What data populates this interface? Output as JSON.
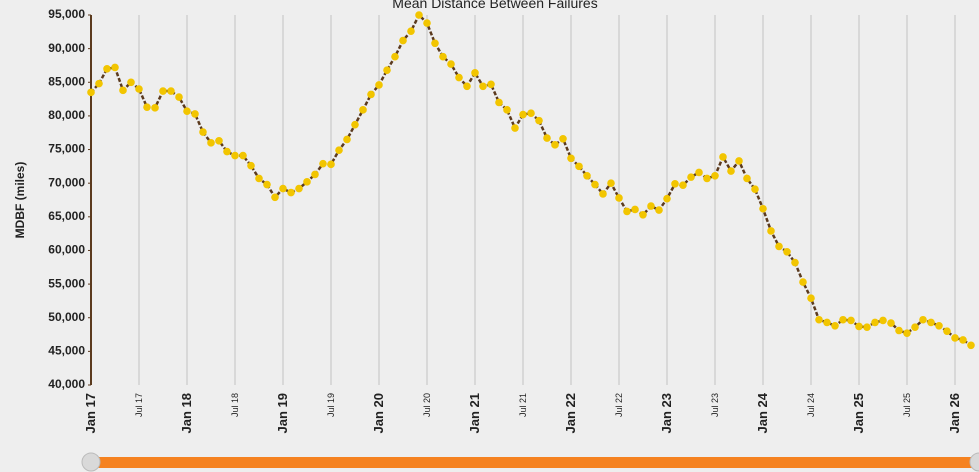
{
  "chart_data": {
    "type": "line",
    "title": "Mean Distance Between Failures",
    "y_label": "MDBF (miles)",
    "categories": [
      "Jan 17",
      null,
      null,
      null,
      null,
      null,
      "Jul 17",
      null,
      null,
      null,
      null,
      null,
      "Jan 18",
      null,
      null,
      null,
      null,
      null,
      "Jul 18",
      null,
      null,
      null,
      null,
      null,
      "Jan 19",
      null,
      null,
      null,
      null,
      null,
      "Jul 19",
      null,
      null,
      null,
      null,
      null,
      "Jan 20",
      null,
      null,
      null,
      null,
      null,
      "Jul 20",
      null,
      null,
      null,
      null,
      null,
      "Jan 21",
      null,
      null,
      null,
      null,
      null,
      "Jul 21",
      null,
      null,
      null,
      null,
      null,
      "Jan 22",
      null,
      null,
      null,
      null,
      null,
      "Jul 22",
      null,
      null,
      null,
      null,
      null,
      "Jan 23",
      null,
      null,
      null,
      null,
      null,
      "Jul 23",
      null,
      null,
      null,
      null,
      null,
      "Jan 24",
      null,
      null,
      null,
      null,
      null,
      "Jul 24",
      null,
      null,
      null,
      null,
      null,
      "Jan 25",
      null,
      null,
      null,
      null,
      null,
      "Jul 25",
      null,
      null,
      null,
      null,
      null,
      "Jan 26",
      null,
      null
    ],
    "series": [
      {
        "name": "MDBF",
        "color": "#f2c500",
        "line_color": "#5b3a1e",
        "values": [
          83500,
          84800,
          87000,
          87200,
          83800,
          85000,
          84000,
          81300,
          81200,
          83700,
          83700,
          82800,
          80700,
          80300,
          77600,
          76000,
          76300,
          74700,
          74100,
          74100,
          72600,
          70700,
          69800,
          67900,
          69200,
          68600,
          69200,
          70200,
          71300,
          72900,
          72800,
          74900,
          76500,
          78700,
          80900,
          83200,
          84600,
          86800,
          88800,
          91200,
          92600,
          95000,
          93800,
          90800,
          88800,
          87700,
          85700,
          84400,
          86400,
          84400,
          84700,
          82000,
          80900,
          78200,
          80200,
          80400,
          79300,
          76700,
          75700,
          76600,
          73700,
          72500,
          71100,
          69800,
          68400,
          70000,
          67800,
          65800,
          66100,
          65300,
          66600,
          66000,
          67700,
          69900,
          69700,
          70900,
          71600,
          70700,
          71100,
          73900,
          71800,
          73300,
          70700,
          69100,
          66200,
          62900,
          60600,
          59800,
          58200,
          55300,
          52900,
          49700,
          49300,
          48800,
          49700,
          49600,
          48700,
          48600,
          49300,
          49600,
          49200,
          48100,
          47700,
          48600,
          49700,
          49300,
          48800,
          48000,
          47000,
          46700,
          45900
        ]
      }
    ],
    "ylim": [
      40000,
      95000
    ],
    "yticks": [
      {
        "value": 40000,
        "label": "40,000"
      },
      {
        "value": 45000,
        "label": "45,000"
      },
      {
        "value": 50000,
        "label": "50,000"
      },
      {
        "value": 55000,
        "label": "55,000"
      },
      {
        "value": 60000,
        "label": "60,000"
      },
      {
        "value": 65000,
        "label": "65,000"
      },
      {
        "value": 70000,
        "label": "70,000"
      },
      {
        "value": 75000,
        "label": "75,000"
      },
      {
        "value": 80000,
        "label": "80,000"
      },
      {
        "value": 85000,
        "label": "85,000"
      },
      {
        "value": 90000,
        "label": "90,000"
      },
      {
        "value": 95000,
        "label": "95,000"
      }
    ],
    "grid": true
  }
}
